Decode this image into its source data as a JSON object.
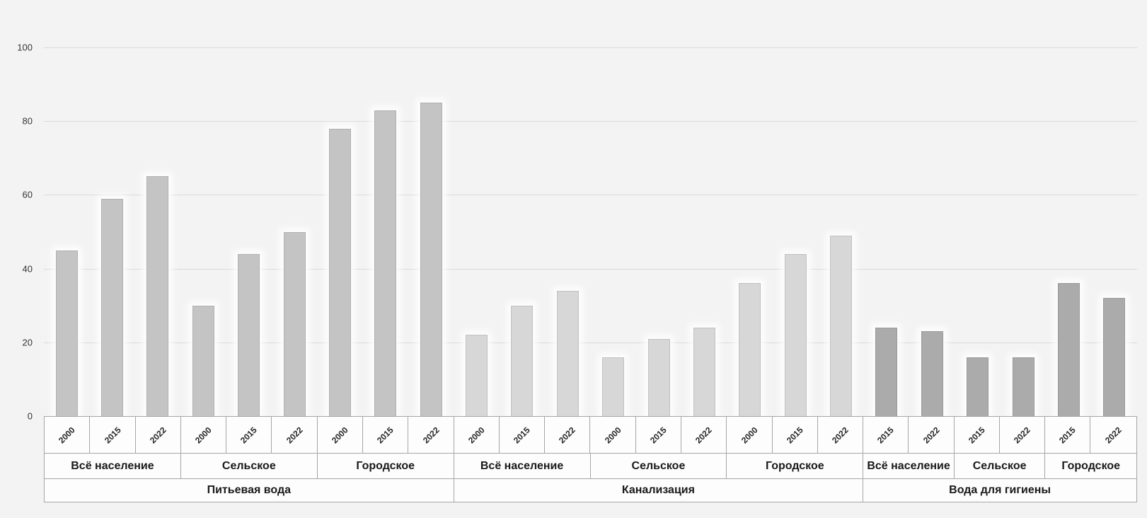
{
  "chart_data": {
    "type": "bar",
    "title": "",
    "xlabel": "",
    "ylabel": "",
    "ylim": [
      0,
      100
    ],
    "yticks": [
      0,
      20,
      40,
      60,
      80,
      100
    ],
    "grid": "horizontal",
    "legend": "none",
    "axis_levels": [
      "year",
      "population_group",
      "service"
    ],
    "groups": [
      {
        "label": "Питьевая вода",
        "bar_color": "#c4c4c4",
        "subgroups": [
          {
            "label": "Всё население",
            "categories": [
              "2000",
              "2015",
              "2022"
            ],
            "values": [
              45,
              59,
              65
            ]
          },
          {
            "label": "Сельское",
            "categories": [
              "2000",
              "2015",
              "2022"
            ],
            "values": [
              30,
              44,
              50
            ]
          },
          {
            "label": "Городское",
            "categories": [
              "2000",
              "2015",
              "2022"
            ],
            "values": [
              78,
              83,
              85
            ]
          }
        ]
      },
      {
        "label": "Канализация",
        "bar_color": "#d7d7d7",
        "subgroups": [
          {
            "label": "Всё население",
            "categories": [
              "2000",
              "2015",
              "2022"
            ],
            "values": [
              22,
              30,
              34
            ]
          },
          {
            "label": "Сельское",
            "categories": [
              "2000",
              "2015",
              "2022"
            ],
            "values": [
              16,
              21,
              24
            ]
          },
          {
            "label": "Городское",
            "categories": [
              "2000",
              "2015",
              "2022"
            ],
            "values": [
              36,
              44,
              49
            ]
          }
        ]
      },
      {
        "label": "Вода для гигиены",
        "bar_color": "#ababab",
        "subgroups": [
          {
            "label": "Всё население",
            "categories": [
              "2015",
              "2022"
            ],
            "values": [
              24,
              23
            ]
          },
          {
            "label": "Сельское",
            "categories": [
              "2015",
              "2022"
            ],
            "values": [
              16,
              16
            ]
          },
          {
            "label": "Городское",
            "categories": [
              "2015",
              "2022"
            ],
            "values": [
              36,
              32
            ]
          }
        ]
      }
    ],
    "colors": {
      "background": "#f3f3f3",
      "gridline": "#d9d9d9",
      "table_border": "#a6a6a6",
      "cell_background": "#fdfdfd",
      "text": "#1a1a1a"
    }
  }
}
